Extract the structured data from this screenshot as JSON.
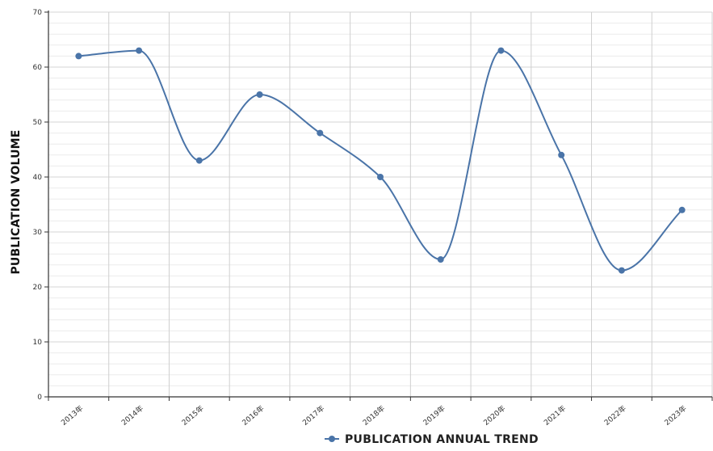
{
  "chart_data": {
    "type": "line",
    "categories": [
      "2013年",
      "2014年",
      "2015年",
      "2016年",
      "2017年",
      "2018年",
      "2019年",
      "2020年",
      "2021年",
      "2022年",
      "2023年"
    ],
    "series": [
      {
        "name": "PUBLICATION ANNUAL TREND",
        "values": [
          62,
          63,
          43,
          55,
          48,
          40,
          25,
          63,
          44,
          23,
          34
        ]
      }
    ],
    "xlabel": "",
    "ylabel": "PUBLICATION VOLUME",
    "ylim": [
      0,
      70
    ],
    "yticks": [
      0,
      10,
      20,
      30,
      40,
      50,
      60,
      70
    ],
    "grid": true,
    "smooth": true,
    "legend_position": "bottom-center",
    "colors": {
      "series": "#4a74a8",
      "grid": "#dddddd",
      "axis": "#333333"
    }
  }
}
